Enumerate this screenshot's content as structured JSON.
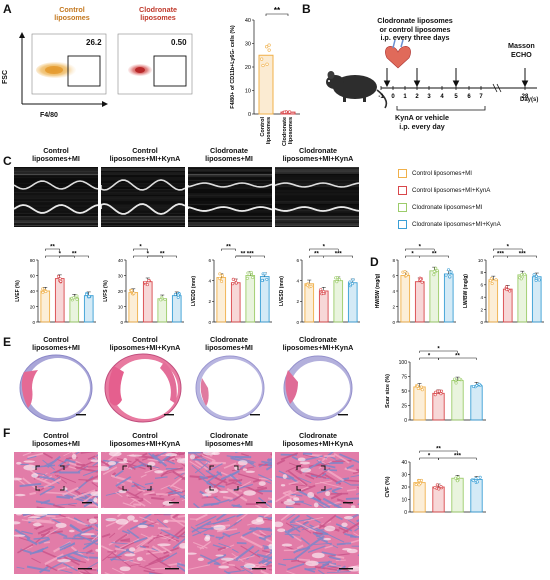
{
  "panels": {
    "A": "A",
    "B": "B",
    "C": "C",
    "D": "D",
    "E": "E",
    "F": "F"
  },
  "panelA": {
    "flow_titles": [
      "Control\nliposomes",
      "Clodronate\nliposomes"
    ],
    "gate_values": [
      "26.2",
      "0.50"
    ],
    "x_axis_label": "F4/80",
    "y_axis_label": "FSC",
    "bar": {
      "ylabel": "F4/80+ of CD11b+Ly6G- cells (%)",
      "yticks": [
        "0",
        "10",
        "20",
        "30",
        "40"
      ],
      "categories": [
        "Control\nliposomes",
        "Clodronate\nliposomes"
      ],
      "significance": "**"
    }
  },
  "panelB": {
    "top_text": "Clodronate liposomes\nor control liposomes\ni.p. every three days",
    "right_text": "Masson\nECHO",
    "bottom_text": "KynA or vehicle\ni.p. every day",
    "ticks": [
      "-1",
      "0",
      "1",
      "2",
      "3",
      "4",
      "5",
      "6",
      "7",
      "28"
    ],
    "days_label": "Day(s)"
  },
  "groups": [
    "Control\nliposomes+MI",
    "Control\nliposomes+MI+KynA",
    "Clodronate\nliposomes+MI",
    "Clodronate\nliposomes+MI+KynA"
  ],
  "legend": [
    {
      "label": "Control liposomes+MI",
      "color": "#f0b04a"
    },
    {
      "label": "Control liposomes+MI+KynA",
      "color": "#d9474b"
    },
    {
      "label": "Clodronate liposomes+MI",
      "color": "#9ccc6a"
    },
    {
      "label": "Clodronate liposomes+MI+KynA",
      "color": "#3a9fd6"
    }
  ],
  "chart_data": [
    {
      "type": "bar",
      "panel": "A",
      "ylabel": "F4/80+ of CD11b+Ly6G- cells (%)",
      "categories": [
        "Control liposomes",
        "Clodronate liposomes"
      ],
      "values": [
        25,
        0.8
      ],
      "ylim": [
        0,
        40
      ],
      "significance": [
        "**"
      ]
    },
    {
      "type": "bar",
      "panel": "C",
      "ylabel": "LVEF (%)",
      "yticks": [
        "0",
        "20",
        "40",
        "60",
        "80"
      ],
      "ylim": [
        0,
        80
      ],
      "categories": [
        "Control liposomes+MI",
        "Control liposomes+MI+KynA",
        "Clodronate liposomes+MI",
        "Clodronate liposomes+MI+KynA"
      ],
      "values": [
        40,
        56,
        31,
        34
      ],
      "significance": [
        "**",
        "*",
        "**"
      ]
    },
    {
      "type": "bar",
      "panel": "C",
      "ylabel": "LVFS (%)",
      "yticks": [
        "0",
        "10",
        "20",
        "30",
        "40"
      ],
      "ylim": [
        0,
        40
      ],
      "categories": [
        "Control liposomes+MI",
        "Control liposomes+MI+KynA",
        "Clodronate liposomes+MI",
        "Clodronate liposomes+MI+KynA"
      ],
      "values": [
        19,
        26,
        15,
        17
      ],
      "significance": [
        "*",
        "*",
        "**"
      ]
    },
    {
      "type": "bar",
      "panel": "C",
      "ylabel": "LVEDD (mm)",
      "yticks": [
        "0",
        "2",
        "4",
        "6"
      ],
      "ylim": [
        0,
        6
      ],
      "categories": [
        "Control liposomes+MI",
        "Control liposomes+MI+KynA",
        "Clodronate liposomes+MI",
        "Clodronate liposomes+MI+KynA"
      ],
      "values": [
        4.3,
        3.8,
        4.5,
        4.4
      ],
      "significance": [
        "**",
        "**",
        "***"
      ]
    },
    {
      "type": "bar",
      "panel": "C",
      "ylabel": "LVESD (mm)",
      "yticks": [
        "0",
        "2",
        "4",
        "6"
      ],
      "ylim": [
        0,
        6
      ],
      "categories": [
        "Control liposomes+MI",
        "Control liposomes+MI+KynA",
        "Clodronate liposomes+MI",
        "Clodronate liposomes+MI+KynA"
      ],
      "values": [
        3.7,
        3.0,
        4.0,
        3.8
      ],
      "significance": [
        "*",
        "**",
        "***"
      ]
    },
    {
      "type": "bar",
      "panel": "D",
      "ylabel": "HW/BW (mg/g)",
      "yticks": [
        "0",
        "2",
        "4",
        "6",
        "8"
      ],
      "ylim": [
        0,
        8
      ],
      "categories": [
        "Control liposomes+MI",
        "Control liposomes+MI+KynA",
        "Clodronate liposomes+MI",
        "Clodronate liposomes+MI+KynA"
      ],
      "values": [
        6.0,
        5.2,
        6.6,
        6.2
      ],
      "significance": [
        "*",
        "*",
        "**"
      ]
    },
    {
      "type": "bar",
      "panel": "D",
      "ylabel": "LW/BW (mg/g)",
      "yticks": [
        "0",
        "2",
        "4",
        "6",
        "8",
        "10"
      ],
      "ylim": [
        0,
        10
      ],
      "categories": [
        "Control liposomes+MI",
        "Control liposomes+MI+KynA",
        "Clodronate liposomes+MI",
        "Clodronate liposomes+MI+KynA"
      ],
      "values": [
        6.8,
        5.3,
        7.6,
        7.3
      ],
      "significance": [
        "*",
        "***",
        "***"
      ]
    },
    {
      "type": "bar",
      "panel": "E",
      "ylabel": "Scar size (%)",
      "yticks": [
        "0",
        "25",
        "50",
        "75",
        "100"
      ],
      "ylim": [
        0,
        100
      ],
      "categories": [
        "Control liposomes+MI",
        "Control liposomes+MI+KynA",
        "Clodronate liposomes+MI",
        "Clodronate liposomes+MI+KynA"
      ],
      "values": [
        57,
        46,
        68,
        59
      ],
      "significance": [
        "*",
        "*",
        "**"
      ]
    },
    {
      "type": "bar",
      "panel": "F",
      "ylabel": "CVF (%)",
      "yticks": [
        "0",
        "10",
        "20",
        "30",
        "40"
      ],
      "ylim": [
        0,
        40
      ],
      "categories": [
        "Control liposomes+MI",
        "Control liposomes+MI+KynA",
        "Clodronate liposomes+MI",
        "Clodronate liposomes+MI+KynA"
      ],
      "values": [
        23.5,
        20,
        27,
        26
      ],
      "significance": [
        "**",
        "*",
        "***"
      ]
    }
  ]
}
